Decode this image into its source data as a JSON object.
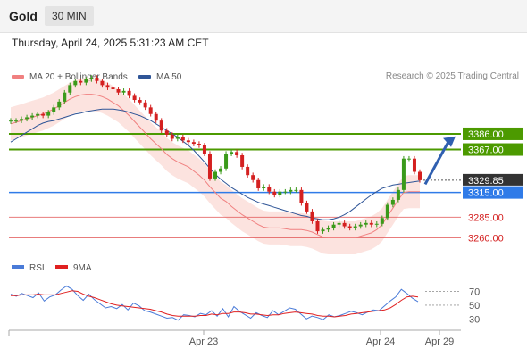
{
  "header": {
    "instrument": "Gold",
    "timeframe": "30 MIN",
    "timestamp": "Thursday, April 24, 2025 5:31:23 AM CET"
  },
  "legend": {
    "items": [
      {
        "label": "MA 20 + Bollinger Bands",
        "color": "#f08080"
      },
      {
        "label": "MA 50",
        "color": "#2f5597"
      }
    ],
    "credit": "Research © 2025 Trading Central"
  },
  "chart_data": [
    {
      "type": "candlestick",
      "title": "",
      "ylim": [
        3240,
        3440
      ],
      "grid": false,
      "x_tick_labels": [
        "Apr 23",
        "Apr 24",
        "Apr 29"
      ],
      "levels": [
        {
          "value": 3386.0,
          "label": "3386.00",
          "style": "resistance",
          "color": "#4c9a00"
        },
        {
          "value": 3367.0,
          "label": "3367.00",
          "style": "resistance",
          "color": "#4c9a00"
        },
        {
          "value": 3329.85,
          "label": "3329.85",
          "style": "last-price",
          "color": "#333333"
        },
        {
          "value": 3315.0,
          "label": "3315.00",
          "style": "pivot",
          "color": "#2f7be8"
        },
        {
          "value": 3285.0,
          "label": "3285.00",
          "style": "support",
          "color": "#e05050"
        },
        {
          "value": 3260.0,
          "label": "3260.00",
          "style": "support",
          "color": "#e05050"
        }
      ],
      "closes": [
        3402,
        3402,
        3404,
        3406,
        3408,
        3410,
        3408,
        3412,
        3418,
        3425,
        3436,
        3445,
        3450,
        3448,
        3452,
        3454,
        3450,
        3445,
        3442,
        3440,
        3436,
        3438,
        3432,
        3427,
        3424,
        3418,
        3410,
        3402,
        3390,
        3385,
        3380,
        3382,
        3378,
        3376,
        3374,
        3372,
        3362,
        3332,
        3340,
        3344,
        3362,
        3364,
        3360,
        3346,
        3336,
        3330,
        3320,
        3322,
        3316,
        3312,
        3316,
        3316,
        3318,
        3318,
        3302,
        3292,
        3280,
        3268,
        3270,
        3272,
        3276,
        3278,
        3274,
        3272,
        3274,
        3276,
        3278,
        3276,
        3277,
        3284,
        3300,
        3306,
        3318,
        3356,
        3356,
        3340,
        3329.85
      ],
      "ma20": [
        3398,
        3400,
        3402,
        3404,
        3406,
        3408,
        3410,
        3413,
        3416,
        3420,
        3424,
        3428,
        3431,
        3433,
        3434,
        3434,
        3433,
        3431,
        3428,
        3424,
        3420,
        3414,
        3408,
        3401,
        3394,
        3387,
        3380,
        3374,
        3368,
        3361,
        3356,
        3352,
        3349,
        3346,
        3341,
        3336,
        3330,
        3322,
        3315,
        3308,
        3304,
        3298,
        3293,
        3288,
        3284,
        3280,
        3276,
        3273,
        3272,
        3272,
        3272,
        3271,
        3270,
        3270,
        3270,
        3269,
        3267,
        3264,
        3261,
        3260,
        3260,
        3260,
        3260,
        3260,
        3260,
        3262,
        3264,
        3266,
        3270,
        3276,
        3286,
        3296,
        3306,
        3315,
        3316,
        3316,
        3316
      ],
      "ma50": [
        3376,
        3380,
        3384,
        3388,
        3392,
        3396,
        3399,
        3401,
        3402,
        3404,
        3406,
        3408,
        3410,
        3411,
        3413,
        3414,
        3415,
        3416,
        3416,
        3416,
        3415,
        3414,
        3412,
        3410,
        3408,
        3405,
        3402,
        3398,
        3394,
        3390,
        3386,
        3382,
        3377,
        3372,
        3366,
        3359,
        3352,
        3344,
        3337,
        3331,
        3326,
        3321,
        3317,
        3313,
        3309,
        3306,
        3303,
        3301,
        3299,
        3297,
        3295,
        3293,
        3291,
        3289,
        3287,
        3286,
        3284,
        3283,
        3282,
        3282,
        3283,
        3285,
        3288,
        3292,
        3297,
        3302,
        3307,
        3312,
        3316,
        3320,
        3322,
        3324,
        3325,
        3326,
        3327,
        3328,
        3329
      ]
    },
    {
      "type": "line",
      "title": "",
      "ylim": [
        20,
        85
      ],
      "y_ticks": [
        30,
        50,
        70
      ],
      "series": [
        {
          "name": "RSI",
          "color": "#4a7bd8"
        },
        {
          "name": "9MA",
          "color": "#e02020"
        }
      ],
      "rsi": [
        66,
        63,
        67,
        64,
        61,
        68,
        56,
        62,
        65,
        72,
        78,
        73,
        64,
        57,
        66,
        58,
        52,
        46,
        48,
        45,
        51,
        43,
        53,
        49,
        42,
        40,
        37,
        34,
        31,
        32,
        28,
        36,
        35,
        33,
        38,
        36,
        42,
        34,
        45,
        33,
        48,
        41,
        36,
        31,
        39,
        35,
        32,
        42,
        36,
        41,
        46,
        44,
        37,
        30,
        34,
        32,
        29,
        36,
        33,
        35,
        38,
        41,
        39,
        36,
        40,
        43,
        42,
        49,
        56,
        62,
        73,
        67,
        60,
        55
      ],
      "rsi_ma": [
        64,
        64,
        65,
        65,
        65,
        66,
        65,
        65,
        65,
        67,
        69,
        71,
        70,
        66,
        63,
        61,
        58,
        55,
        52,
        50,
        49,
        48,
        47,
        46,
        45,
        44,
        42,
        40,
        37,
        35,
        34,
        34,
        34,
        34,
        35,
        35,
        37,
        36,
        38,
        38,
        40,
        40,
        39,
        37,
        37,
        36,
        35,
        36,
        36,
        38,
        39,
        40,
        39,
        38,
        37,
        35,
        34,
        34,
        33,
        34,
        35,
        37,
        38,
        39,
        40,
        41,
        42,
        43,
        46,
        51,
        57,
        62,
        63,
        62
      ]
    }
  ]
}
